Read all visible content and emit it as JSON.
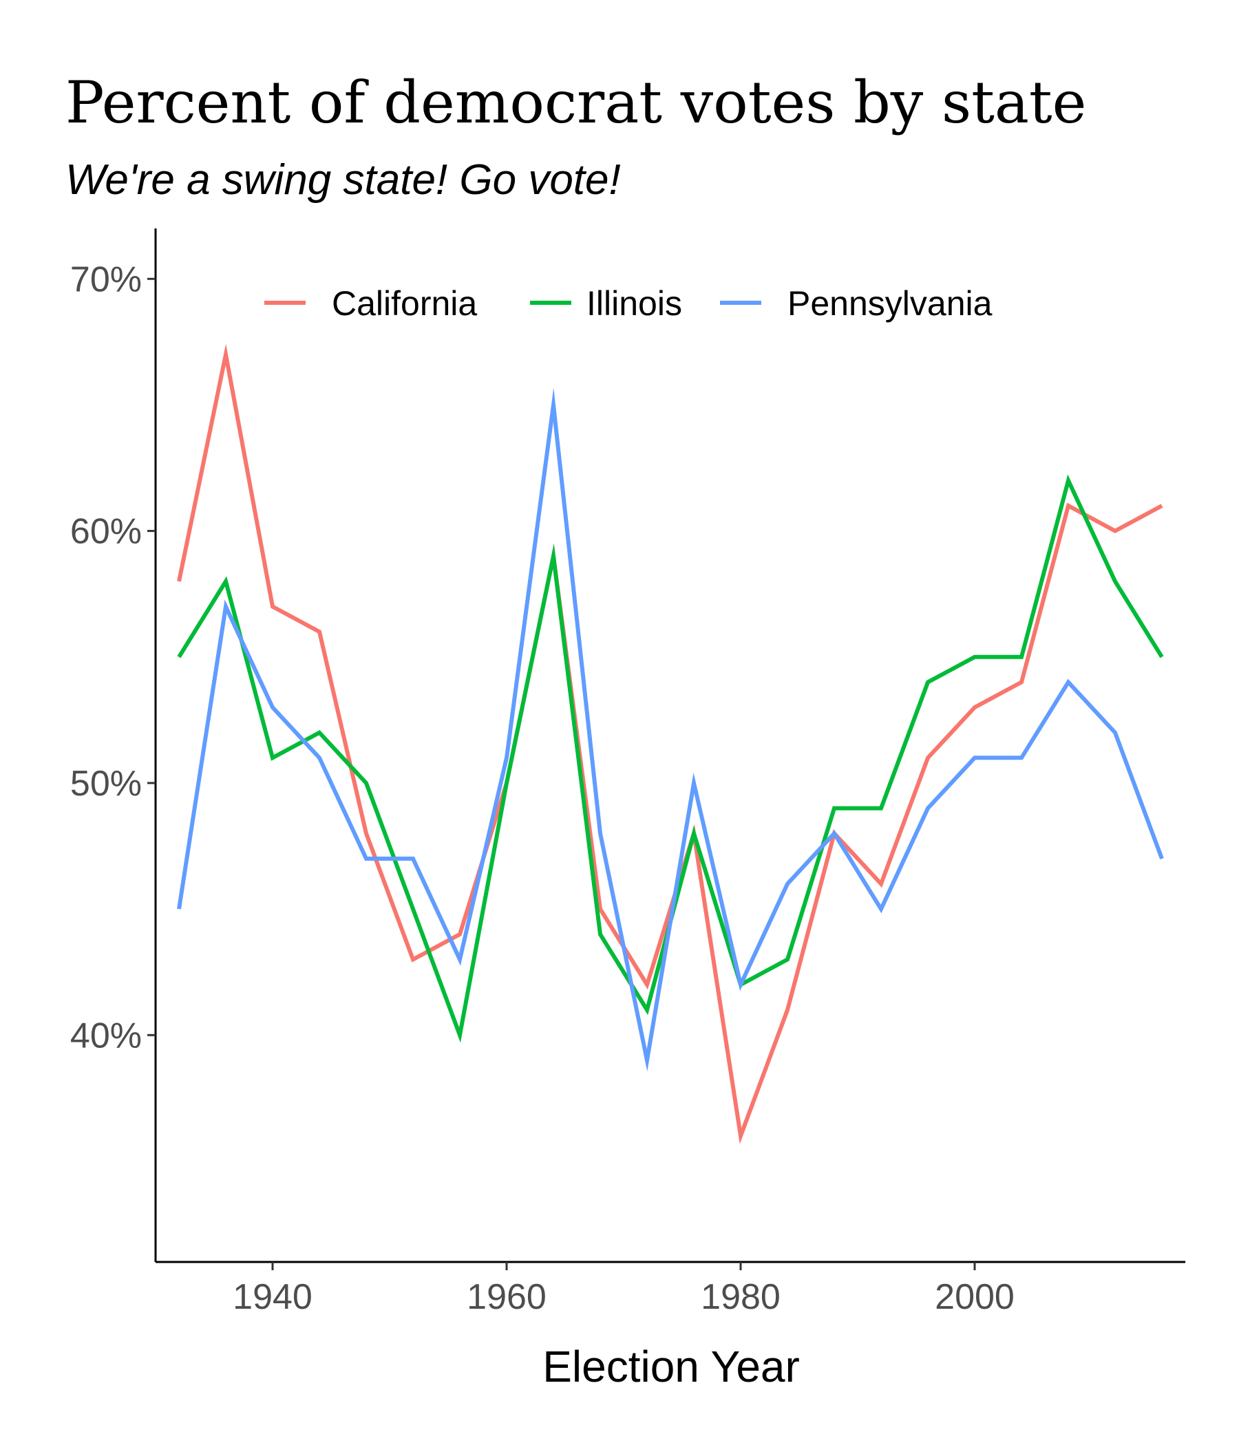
{
  "chart_data": {
    "type": "line",
    "title": "Percent of democrat votes by state",
    "subtitle": "We're a swing state! Go vote!",
    "xlabel": "Election Year",
    "ylabel": "",
    "x": [
      1932,
      1936,
      1940,
      1944,
      1948,
      1952,
      1956,
      1960,
      1964,
      1968,
      1972,
      1976,
      1980,
      1984,
      1988,
      1992,
      1996,
      2000,
      2004,
      2008,
      2012,
      2016
    ],
    "series": [
      {
        "name": "California",
        "color": "#F8766D",
        "values": [
          58,
          67,
          57,
          56,
          48,
          43,
          44,
          50,
          59,
          45,
          42,
          48,
          36,
          41,
          48,
          46,
          51,
          53,
          54,
          61,
          60,
          61
        ]
      },
      {
        "name": "Illinois",
        "color": "#00BA38",
        "values": [
          55,
          58,
          51,
          52,
          50,
          45,
          40,
          50,
          59,
          44,
          41,
          48,
          42,
          43,
          49,
          49,
          54,
          55,
          55,
          62,
          58,
          55
        ]
      },
      {
        "name": "Pennsylvania",
        "color": "#619CFF",
        "values": [
          45,
          57,
          53,
          51,
          47,
          47,
          43,
          51,
          65,
          48,
          39,
          50,
          42,
          46,
          48,
          45,
          49,
          51,
          51,
          54,
          52,
          47
        ]
      }
    ],
    "xlim": [
      1930,
      2018
    ],
    "ylim": [
      31,
      72
    ],
    "x_ticks": [
      1940,
      1960,
      1980,
      2000
    ],
    "x_tick_labels": [
      "1940",
      "1960",
      "1980",
      "2000"
    ],
    "y_ticks": [
      40,
      50,
      60,
      70
    ],
    "y_tick_labels": [
      "40%",
      "50%",
      "60%",
      "70%"
    ],
    "grid": false,
    "legend_position": "top"
  }
}
